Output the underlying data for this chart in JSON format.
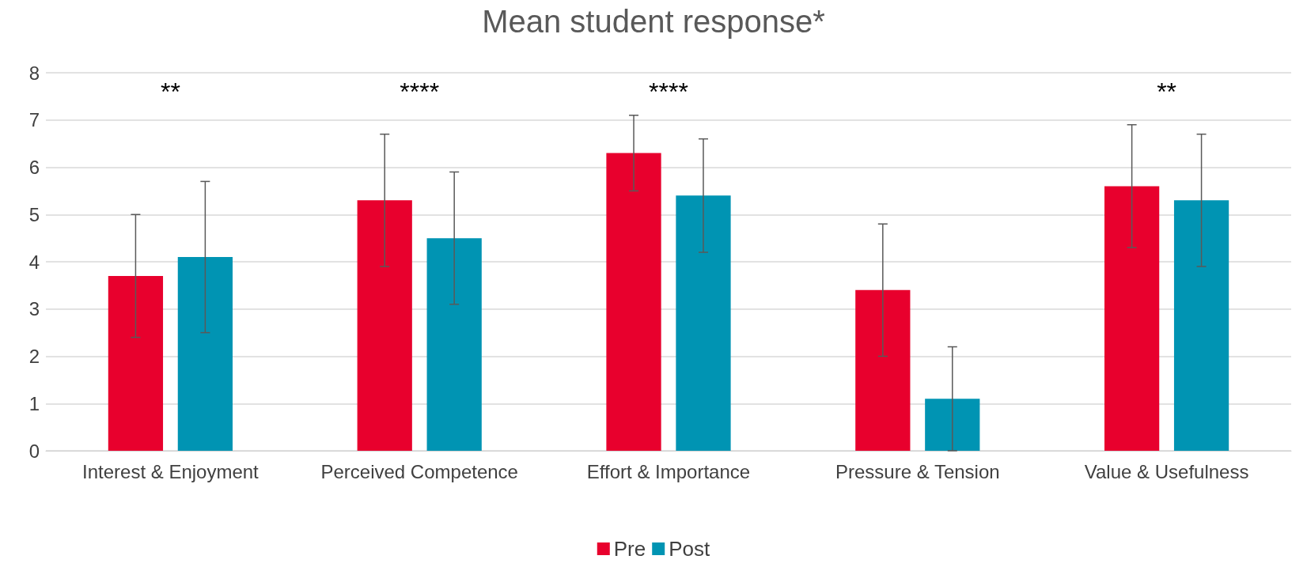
{
  "chart_data": {
    "type": "bar",
    "title": "Mean student response*",
    "categories": [
      "Interest & Enjoyment",
      "Perceived Competence",
      "Effort & Importance",
      "Pressure & Tension",
      "Value & Usefulness"
    ],
    "series": [
      {
        "name": "Pre",
        "color": "#e8002d",
        "values": [
          3.7,
          5.3,
          6.3,
          3.4,
          5.6
        ],
        "errors": [
          1.3,
          1.4,
          0.8,
          1.4,
          1.3
        ]
      },
      {
        "name": "Post",
        "color": "#0094b3",
        "values": [
          4.1,
          4.5,
          5.4,
          1.1,
          5.3
        ],
        "errors": [
          1.6,
          1.4,
          1.2,
          1.1,
          1.4
        ]
      }
    ],
    "ylim": [
      0,
      8
    ],
    "yticks": [
      0,
      1,
      2,
      3,
      4,
      5,
      6,
      7,
      8
    ],
    "grid": "y",
    "legend": "bottom",
    "annotations": [
      "**",
      "****",
      "****",
      "**"
    ]
  }
}
